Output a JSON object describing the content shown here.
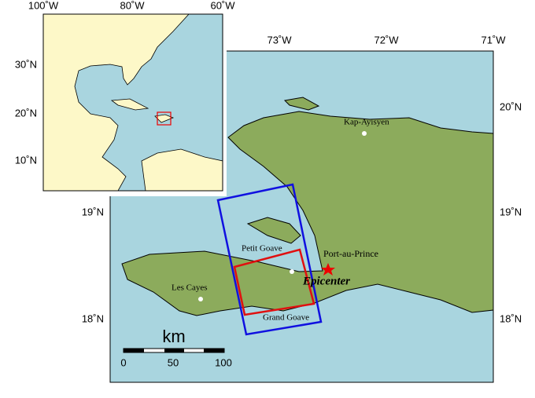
{
  "main_map": {
    "top_labels": [
      "73˚W",
      "72˚W",
      "71˚W"
    ],
    "left_labels": [
      "19˚N",
      "18˚N"
    ],
    "right_labels": [
      "20˚N",
      "19˚N",
      "18˚N"
    ],
    "places": {
      "kap": "Kap-Ayisyen",
      "pap": "Port-au-Prince",
      "petit": "Petit Goave",
      "cayes": "Les Cayes",
      "grand": "Grand Goave",
      "epicenter": "Epicenter"
    },
    "scale": {
      "unit": "km",
      "labels": [
        "0",
        "50",
        "100"
      ]
    }
  },
  "inset_map": {
    "top_labels": [
      "100˚W",
      "80˚W",
      "60˚W"
    ],
    "left_labels": [
      "30˚N",
      "20˚N",
      "10˚N"
    ]
  }
}
